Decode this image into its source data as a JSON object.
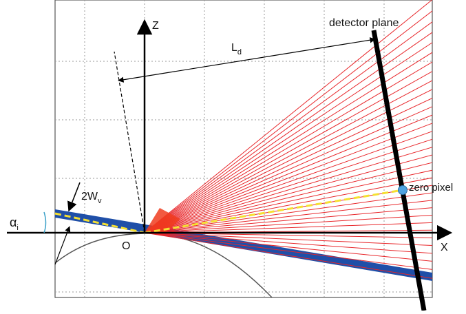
{
  "labels": {
    "z_axis": "Z",
    "x_axis": "X",
    "origin": "O",
    "detector": "detector plane",
    "distance_main": "L",
    "distance_sub": "d",
    "beam_main": "2W",
    "beam_sub": "v",
    "angle_main": "α",
    "angle_sub": "i",
    "zero_pixel": "zero pixel"
  },
  "colors": {
    "rays": "#e8262a",
    "fan_core": "#f03c1e",
    "beam": "#1f4fa8",
    "center_line": "#f5e032",
    "zero_pixel_marker": "#4fa3e0",
    "detector": "#000000",
    "grid": "#9a9a9a",
    "angle_arc": "#3aa0c8"
  }
}
